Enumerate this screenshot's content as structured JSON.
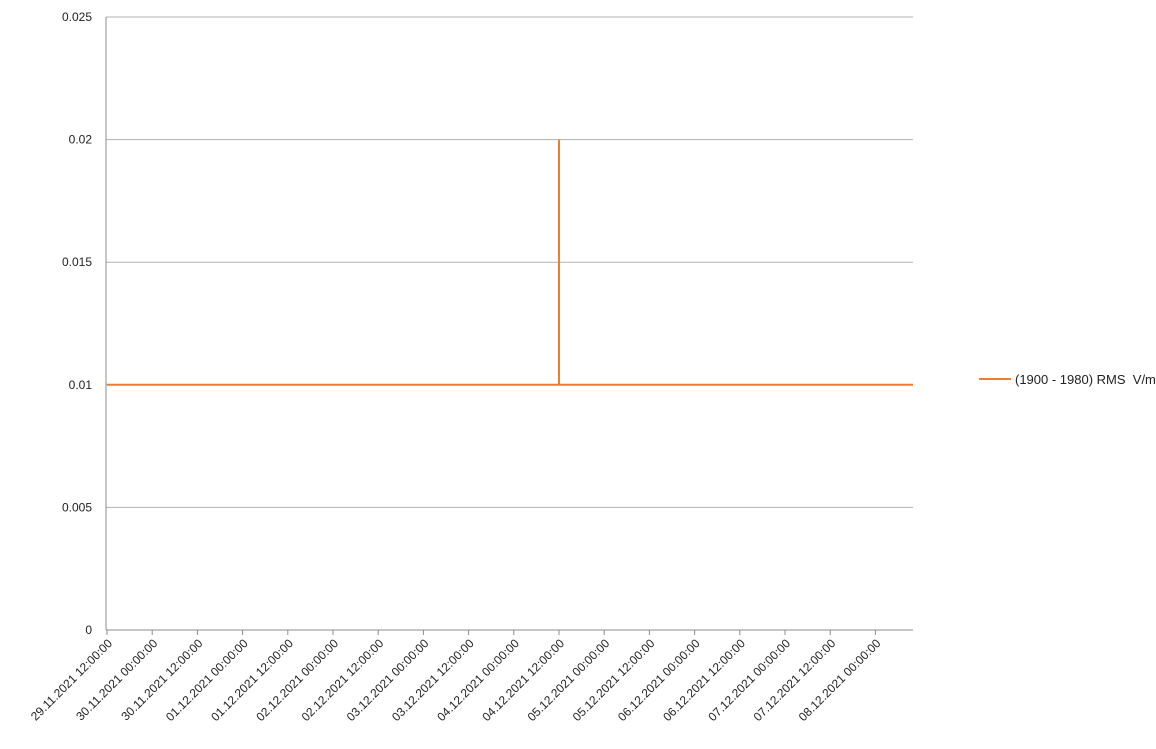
{
  "chart_data": {
    "type": "line",
    "title": "",
    "xlabel": "",
    "ylabel": "",
    "ylim": [
      0,
      0.025
    ],
    "y_ticks": [
      "0",
      "0.005",
      "0.01",
      "0.015",
      "0.02",
      "0.025"
    ],
    "x_ticks": [
      "29.11.2021 12:00:00",
      "30.11.2021 00:00:00",
      "30.11.2021 12:00:00",
      "01.12.2021 00:00:00",
      "01.12.2021 12:00:00",
      "02.12.2021 00:00:00",
      "02.12.2021 12:00:00",
      "03.12.2021 00:00:00",
      "03.12.2021 12:00:00",
      "04.12.2021 00:00:00",
      "04.12.2021 12:00:00",
      "05.12.2021 00:00:00",
      "05.12.2021 12:00:00",
      "06.12.2021 00:00:00",
      "06.12.2021 12:00:00",
      "07.12.2021 00:00:00",
      "07.12.2021 12:00:00",
      "08.12.2021 00:00:00"
    ],
    "grid": "horizontal",
    "legend_position": "right",
    "series": [
      {
        "name": "(1900 - 1980) RMS  V/m",
        "color": "#ED7D31",
        "x": [
          "29.11.2021 12:00:00",
          "04.12.2021 12:00:00",
          "04.12.2021 12:00:00",
          "04.12.2021 12:00:00",
          "08.12.2021 12:00:00"
        ],
        "y": [
          0.01,
          0.01,
          0.02,
          0.01,
          0.01
        ]
      }
    ]
  }
}
